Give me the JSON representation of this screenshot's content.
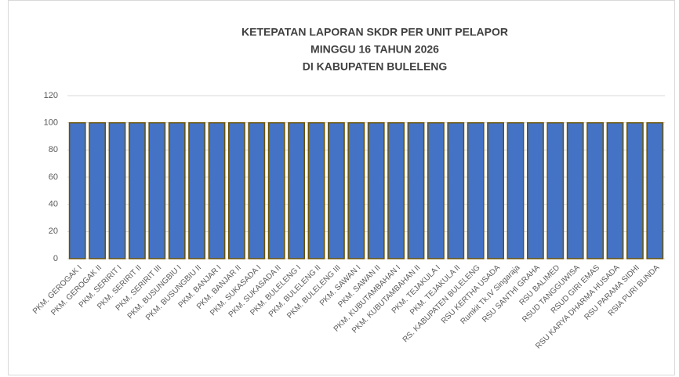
{
  "chart_data": {
    "type": "bar",
    "title": [
      "KETEPATAN  LAPORAN SKDR PER UNIT PELAPOR",
      "MINGGU 16 TAHUN 2026",
      "DI KABUPATEN BULELENG"
    ],
    "categories": [
      "PKM. GEROGAK I",
      "PKM. GEROGAK II",
      "PKM. SERIRIT I",
      "PKM. SERIRIT II",
      "PKM. SERIRIT III",
      "PKM. BUSUNGBIU I",
      "PKM. BUSUNGBIU II",
      "PKM. BANJAR I",
      "PKM. BANJAR II",
      "PKM. SUKASADA I",
      "PKM. SUKASADA II",
      "PKM. BULELENG I",
      "PKM. BULELENG II",
      "PKM. BULELENG III",
      "PKM. SAWAN I",
      "PKM. SAWAN II",
      "PKM. KUBUTAMBAHAN I",
      "PKM. KUBUTAMBAHAN II",
      "PKM. TEJAKULA I",
      "PKM. TEJAKULA II",
      "RS. KABUPATEN BULELENG",
      "RSU KERTHA USADA",
      "Rumkit Tk.IV Singaraja",
      "RSU SANTHI GRAHA",
      "RSU BALIMED",
      "RSUD TANGGUWISA",
      "RSUD GIRI EMAS",
      "RSU KARYA DHARMA HUSADA",
      "RSU PARAMA SIDHI",
      "RSIA PURI BUNDA"
    ],
    "values": [
      100,
      100,
      100,
      100,
      100,
      100,
      100,
      100,
      100,
      100,
      100,
      100,
      100,
      100,
      100,
      100,
      100,
      100,
      100,
      100,
      100,
      100,
      100,
      100,
      100,
      100,
      100,
      100,
      100,
      100
    ],
    "color": "#4472c4",
    "edge_color": "#6b5200",
    "ylim": [
      0,
      120
    ],
    "yticks": [
      0,
      20,
      40,
      60,
      80,
      100,
      120
    ],
    "grid": true
  }
}
